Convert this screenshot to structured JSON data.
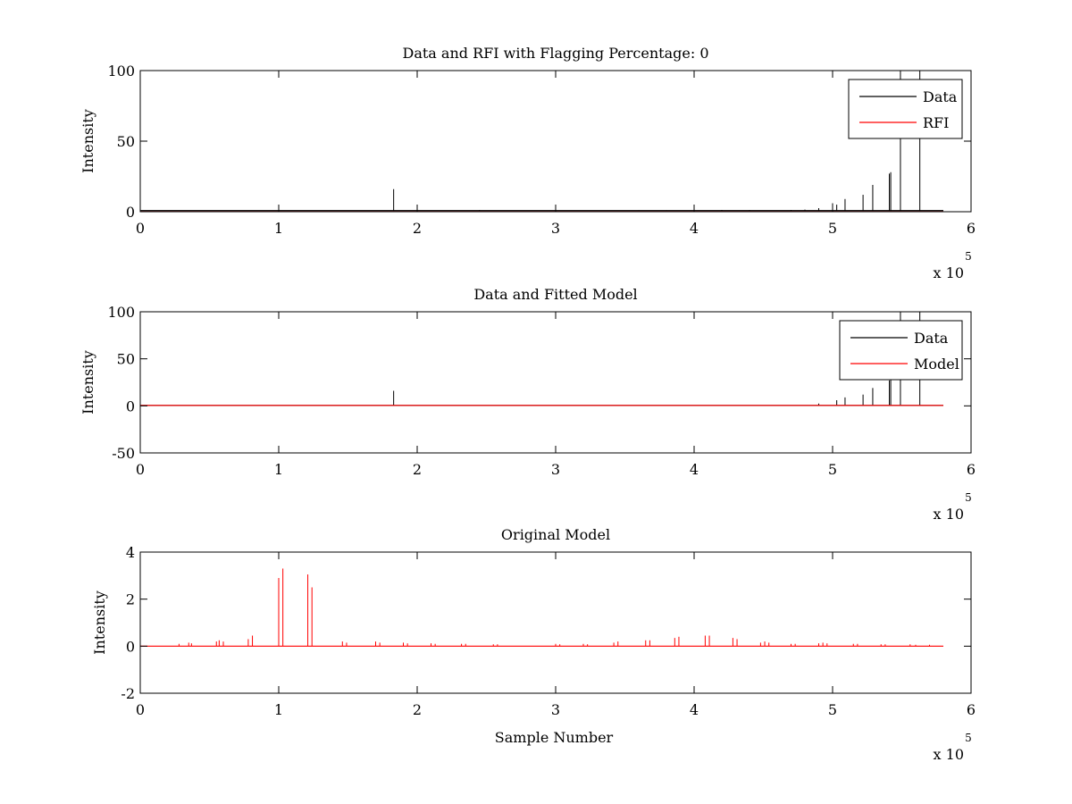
{
  "chart_data": [
    {
      "type": "line",
      "title": "Data and RFI with Flagging Percentage: 0",
      "xlabel": "",
      "ylabel": "Intensity",
      "xlim": [
        0,
        600000
      ],
      "ylim": [
        0,
        100
      ],
      "xticks": [
        0,
        1,
        2,
        3,
        4,
        5,
        6
      ],
      "yticks": [
        0,
        50,
        100
      ],
      "x_multiplier": {
        "base": "x 10",
        "exponent": "5"
      },
      "legend": {
        "position": "top-right",
        "entries": [
          "Data",
          "RFI"
        ]
      },
      "grid": false,
      "series": [
        {
          "name": "Data",
          "color": "#000000",
          "baseline": 0.8,
          "x_end": 580000,
          "spikes": [
            [
              183000,
              16
            ],
            [
              245000,
              1.2
            ],
            [
              360000,
              1.0
            ],
            [
              380000,
              1.0
            ],
            [
              400000,
              1.2
            ],
            [
              420000,
              1.3
            ],
            [
              440000,
              1.2
            ],
            [
              470000,
              1.3
            ],
            [
              480000,
              1.5
            ],
            [
              490000,
              2.5
            ],
            [
              500000,
              6
            ],
            [
              503000,
              5
            ],
            [
              509000,
              9
            ],
            [
              522000,
              12
            ],
            [
              529000,
              19
            ],
            [
              541000,
              27
            ],
            [
              542000,
              28
            ],
            [
              549000,
              100
            ],
            [
              563000,
              100
            ]
          ]
        },
        {
          "name": "RFI",
          "color": "#ff0000",
          "baseline": 0,
          "x_end": 580000,
          "spikes": []
        }
      ]
    },
    {
      "type": "line",
      "title": "Data and Fitted Model",
      "xlabel": "",
      "ylabel": "Intensity",
      "xlim": [
        0,
        600000
      ],
      "ylim": [
        -50,
        100
      ],
      "xticks": [
        0,
        1,
        2,
        3,
        4,
        5,
        6
      ],
      "yticks": [
        -50,
        0,
        50,
        100
      ],
      "x_multiplier": {
        "base": "x 10",
        "exponent": "5"
      },
      "legend": {
        "position": "top-right",
        "entries": [
          "Data",
          "Model"
        ]
      },
      "grid": false,
      "series": [
        {
          "name": "Data",
          "color": "#000000",
          "baseline": 0.5,
          "x_end": 580000,
          "spikes": [
            [
              183000,
              16
            ],
            [
              490000,
              2.5
            ],
            [
              503000,
              6
            ],
            [
              509000,
              9
            ],
            [
              522000,
              12
            ],
            [
              529000,
              19
            ],
            [
              541000,
              27
            ],
            [
              542000,
              28
            ],
            [
              549000,
              100
            ],
            [
              563000,
              100
            ]
          ]
        },
        {
          "name": "Model",
          "color": "#ff0000",
          "baseline": 0.5,
          "x_end": 580000,
          "spikes": []
        }
      ]
    },
    {
      "type": "line",
      "title": "Original Model",
      "xlabel": "Sample Number",
      "ylabel": "Intensity",
      "xlim": [
        0,
        600000
      ],
      "ylim": [
        -2,
        4
      ],
      "xticks": [
        0,
        1,
        2,
        3,
        4,
        5,
        6
      ],
      "yticks": [
        -2,
        0,
        2,
        4
      ],
      "x_multiplier": {
        "base": "x 10",
        "exponent": "5"
      },
      "legend": null,
      "grid": false,
      "series": [
        {
          "name": "",
          "color": "#ff0000",
          "baseline": 0,
          "x_end": 580000,
          "spikes": [
            [
              28000,
              0.1
            ],
            [
              35000,
              0.15
            ],
            [
              37000,
              0.12
            ],
            [
              55000,
              0.2
            ],
            [
              57000,
              0.25
            ],
            [
              60000,
              0.2
            ],
            [
              78000,
              0.3
            ],
            [
              81000,
              0.45
            ],
            [
              100000,
              2.9
            ],
            [
              103000,
              3.3
            ],
            [
              121000,
              3.05
            ],
            [
              124000,
              2.5
            ],
            [
              146000,
              0.2
            ],
            [
              149000,
              0.15
            ],
            [
              170000,
              0.2
            ],
            [
              173000,
              0.15
            ],
            [
              190000,
              0.15
            ],
            [
              193000,
              0.12
            ],
            [
              210000,
              0.12
            ],
            [
              213000,
              0.1
            ],
            [
              232000,
              0.1
            ],
            [
              235000,
              0.1
            ],
            [
              255000,
              0.08
            ],
            [
              258000,
              0.08
            ],
            [
              300000,
              0.1
            ],
            [
              303000,
              0.08
            ],
            [
              320000,
              0.1
            ],
            [
              323000,
              0.08
            ],
            [
              342000,
              0.15
            ],
            [
              345000,
              0.2
            ],
            [
              365000,
              0.25
            ],
            [
              368000,
              0.25
            ],
            [
              386000,
              0.35
            ],
            [
              389000,
              0.4
            ],
            [
              408000,
              0.45
            ],
            [
              411000,
              0.45
            ],
            [
              428000,
              0.35
            ],
            [
              431000,
              0.3
            ],
            [
              448000,
              0.15
            ],
            [
              451000,
              0.2
            ],
            [
              454000,
              0.15
            ],
            [
              470000,
              0.1
            ],
            [
              473000,
              0.1
            ],
            [
              490000,
              0.12
            ],
            [
              493000,
              0.15
            ],
            [
              496000,
              0.12
            ],
            [
              515000,
              0.1
            ],
            [
              518000,
              0.1
            ],
            [
              535000,
              0.08
            ],
            [
              538000,
              0.08
            ],
            [
              556000,
              0.08
            ],
            [
              560000,
              0.06
            ],
            [
              570000,
              0.06
            ]
          ]
        }
      ]
    }
  ]
}
